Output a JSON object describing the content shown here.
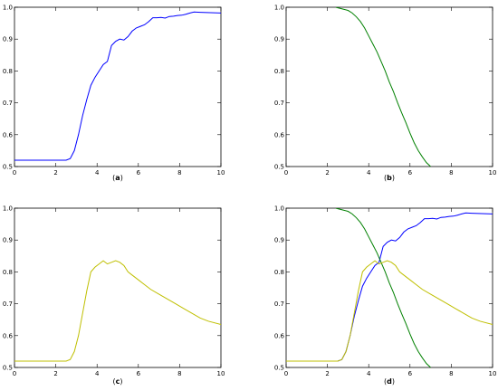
{
  "chart_data": [
    {
      "type": "line",
      "panel_label": "(a)",
      "xlim": [
        0,
        10
      ],
      "ylim": [
        0.5,
        1.0
      ],
      "x_ticks": [
        "0",
        "2",
        "4",
        "6",
        "8",
        "10"
      ],
      "y_ticks": [
        "0.5",
        "0.6",
        "0.7",
        "0.8",
        "0.9",
        "1.0"
      ],
      "grid": false,
      "series": [
        {
          "color": "#0000ff",
          "x": [
            0,
            2.5,
            2.7,
            2.9,
            3.1,
            3.3,
            3.5,
            3.7,
            3.9,
            4.1,
            4.3,
            4.5,
            4.7,
            4.9,
            5.1,
            5.3,
            5.5,
            5.7,
            5.9,
            6.1,
            6.3,
            6.5,
            6.7,
            6.9,
            7.1,
            7.3,
            7.5,
            7.7,
            7.9,
            8.1,
            8.3,
            8.5,
            8.7,
            9.0,
            10
          ],
          "y": [
            0.52,
            0.52,
            0.525,
            0.55,
            0.6,
            0.66,
            0.71,
            0.755,
            0.78,
            0.8,
            0.82,
            0.83,
            0.88,
            0.893,
            0.9,
            0.897,
            0.908,
            0.925,
            0.935,
            0.94,
            0.945,
            0.955,
            0.967,
            0.967,
            0.968,
            0.966,
            0.971,
            0.972,
            0.974,
            0.975,
            0.978,
            0.982,
            0.985,
            0.984,
            0.982
          ]
        }
      ]
    },
    {
      "type": "line",
      "panel_label": "(b)",
      "xlim": [
        0,
        10
      ],
      "ylim": [
        0.5,
        1.0
      ],
      "x_ticks": [
        "0",
        "2",
        "4",
        "6",
        "8",
        "10"
      ],
      "y_ticks": [
        "0.5",
        "0.6",
        "0.7",
        "0.8",
        "0.9",
        "1.0"
      ],
      "grid": false,
      "series": [
        {
          "color": "#008000",
          "x": [
            2.4,
            2.7,
            3.0,
            3.2,
            3.4,
            3.6,
            3.8,
            4.0,
            4.2,
            4.4,
            4.6,
            4.8,
            5.0,
            5.2,
            5.4,
            5.6,
            5.8,
            6.0,
            6.2,
            6.4,
            6.6,
            6.8,
            7.0
          ],
          "y": [
            1.0,
            0.995,
            0.99,
            0.982,
            0.97,
            0.955,
            0.935,
            0.91,
            0.885,
            0.86,
            0.83,
            0.8,
            0.765,
            0.735,
            0.7,
            0.668,
            0.638,
            0.605,
            0.575,
            0.55,
            0.53,
            0.512,
            0.5
          ]
        }
      ]
    },
    {
      "type": "line",
      "panel_label": "(c)",
      "xlim": [
        0,
        10
      ],
      "ylim": [
        0.5,
        1.0
      ],
      "x_ticks": [
        "0",
        "2",
        "4",
        "6",
        "8",
        "10"
      ],
      "y_ticks": [
        "0.5",
        "0.6",
        "0.7",
        "0.8",
        "0.9",
        "1.0"
      ],
      "grid": false,
      "series": [
        {
          "color": "#bfbf00",
          "x": [
            0,
            2.5,
            2.7,
            2.9,
            3.1,
            3.3,
            3.5,
            3.7,
            3.9,
            4.1,
            4.3,
            4.5,
            4.7,
            4.9,
            5.1,
            5.3,
            5.5,
            5.7,
            6.0,
            6.3,
            6.6,
            7.0,
            7.4,
            7.8,
            8.2,
            8.6,
            9.0,
            9.4,
            10
          ],
          "y": [
            0.52,
            0.52,
            0.525,
            0.55,
            0.6,
            0.67,
            0.74,
            0.8,
            0.815,
            0.825,
            0.835,
            0.825,
            0.83,
            0.835,
            0.83,
            0.82,
            0.8,
            0.79,
            0.775,
            0.76,
            0.745,
            0.73,
            0.715,
            0.7,
            0.685,
            0.67,
            0.655,
            0.645,
            0.635
          ]
        }
      ]
    },
    {
      "type": "line",
      "panel_label": "(d)",
      "xlim": [
        0,
        10
      ],
      "ylim": [
        0.5,
        1.0
      ],
      "x_ticks": [
        "0",
        "2",
        "4",
        "6",
        "8",
        "10"
      ],
      "y_ticks": [
        "0.5",
        "0.6",
        "0.7",
        "0.8",
        "0.9",
        "1.0"
      ],
      "grid": false,
      "series": [
        {
          "color": "#0000ff",
          "x": [
            0,
            2.5,
            2.7,
            2.9,
            3.1,
            3.3,
            3.5,
            3.7,
            3.9,
            4.1,
            4.3,
            4.5,
            4.7,
            4.9,
            5.1,
            5.3,
            5.5,
            5.7,
            5.9,
            6.1,
            6.3,
            6.5,
            6.7,
            6.9,
            7.1,
            7.3,
            7.5,
            7.7,
            7.9,
            8.1,
            8.3,
            8.5,
            8.7,
            9.0,
            10
          ],
          "y": [
            0.52,
            0.52,
            0.525,
            0.55,
            0.6,
            0.66,
            0.71,
            0.755,
            0.78,
            0.8,
            0.82,
            0.83,
            0.88,
            0.893,
            0.9,
            0.897,
            0.908,
            0.925,
            0.935,
            0.94,
            0.945,
            0.955,
            0.967,
            0.967,
            0.968,
            0.966,
            0.971,
            0.972,
            0.974,
            0.975,
            0.978,
            0.982,
            0.985,
            0.984,
            0.982
          ]
        },
        {
          "color": "#008000",
          "x": [
            2.4,
            2.7,
            3.0,
            3.2,
            3.4,
            3.6,
            3.8,
            4.0,
            4.2,
            4.4,
            4.6,
            4.8,
            5.0,
            5.2,
            5.4,
            5.6,
            5.8,
            6.0,
            6.2,
            6.4,
            6.6,
            6.8,
            7.0
          ],
          "y": [
            1.0,
            0.995,
            0.99,
            0.982,
            0.97,
            0.955,
            0.935,
            0.91,
            0.885,
            0.86,
            0.83,
            0.8,
            0.765,
            0.735,
            0.7,
            0.668,
            0.638,
            0.605,
            0.575,
            0.55,
            0.53,
            0.512,
            0.5
          ]
        },
        {
          "color": "#bfbf00",
          "x": [
            0,
            2.5,
            2.7,
            2.9,
            3.1,
            3.3,
            3.5,
            3.7,
            3.9,
            4.1,
            4.3,
            4.5,
            4.7,
            4.9,
            5.1,
            5.3,
            5.5,
            5.7,
            6.0,
            6.3,
            6.6,
            7.0,
            7.4,
            7.8,
            8.2,
            8.6,
            9.0,
            9.4,
            10
          ],
          "y": [
            0.52,
            0.52,
            0.525,
            0.55,
            0.6,
            0.67,
            0.74,
            0.8,
            0.815,
            0.825,
            0.835,
            0.825,
            0.83,
            0.835,
            0.83,
            0.82,
            0.8,
            0.79,
            0.775,
            0.76,
            0.745,
            0.73,
            0.715,
            0.7,
            0.685,
            0.67,
            0.655,
            0.645,
            0.635
          ]
        }
      ]
    }
  ]
}
